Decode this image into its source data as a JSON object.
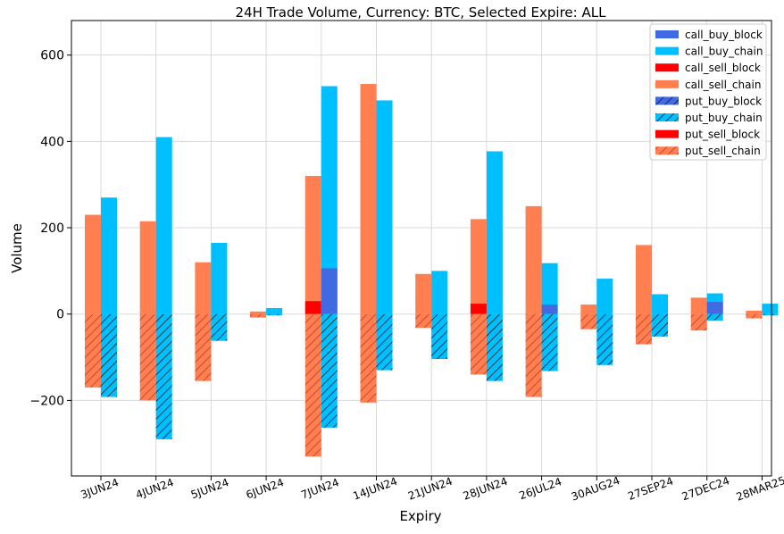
{
  "chart_data": {
    "type": "bar",
    "title": "24H Trade Volume, Currency: BTC, Selected Expire: ALL",
    "xlabel": "Expiry",
    "ylabel": "Volume",
    "ylim": [
      -375,
      680
    ],
    "yticks": [
      -200,
      0,
      200,
      400,
      600
    ],
    "grid": true,
    "legend_position": "top-right",
    "categories": [
      "3JUN24",
      "4JUN24",
      "5JUN24",
      "6JUN24",
      "7JUN24",
      "14JUN24",
      "21JUN24",
      "28JUN24",
      "26JUL24",
      "30AUG24",
      "27SEP24",
      "27DEC24",
      "28MAR25"
    ],
    "series": [
      {
        "name": "call_buy_block",
        "color": "#4169e1",
        "hatch": false,
        "values": [
          0,
          0,
          0,
          0,
          106,
          0,
          0,
          0,
          22,
          0,
          0,
          28,
          0
        ]
      },
      {
        "name": "call_buy_chain",
        "color": "#00bfff",
        "hatch": false,
        "values": [
          270,
          410,
          165,
          14,
          528,
          495,
          100,
          377,
          118,
          82,
          46,
          48,
          24
        ]
      },
      {
        "name": "call_sell_block",
        "color": "#ff0000",
        "hatch": false,
        "values": [
          0,
          0,
          0,
          0,
          30,
          0,
          0,
          24,
          0,
          0,
          0,
          0,
          0
        ]
      },
      {
        "name": "call_sell_chain",
        "color": "#ff7f50",
        "hatch": false,
        "values": [
          230,
          215,
          120,
          6,
          320,
          533,
          93,
          220,
          250,
          22,
          160,
          38,
          8
        ]
      },
      {
        "name": "put_buy_block",
        "color": "#4169e1",
        "hatch": true,
        "values": [
          0,
          0,
          0,
          0,
          0,
          0,
          0,
          0,
          0,
          0,
          0,
          0,
          0
        ]
      },
      {
        "name": "put_buy_chain",
        "color": "#00bfff",
        "hatch": true,
        "values": [
          -192,
          -290,
          -62,
          -3,
          -263,
          -130,
          -104,
          -155,
          -132,
          -118,
          -52,
          -15,
          -3
        ]
      },
      {
        "name": "put_sell_block",
        "color": "#ff0000",
        "hatch": false,
        "values": [
          0,
          0,
          0,
          0,
          0,
          0,
          0,
          0,
          0,
          0,
          0,
          0,
          0
        ]
      },
      {
        "name": "put_sell_chain",
        "color": "#ff7f50",
        "hatch": true,
        "values": [
          -170,
          -200,
          -155,
          -8,
          -330,
          -205,
          -32,
          -140,
          -192,
          -35,
          -70,
          -38,
          -10
        ]
      }
    ]
  }
}
